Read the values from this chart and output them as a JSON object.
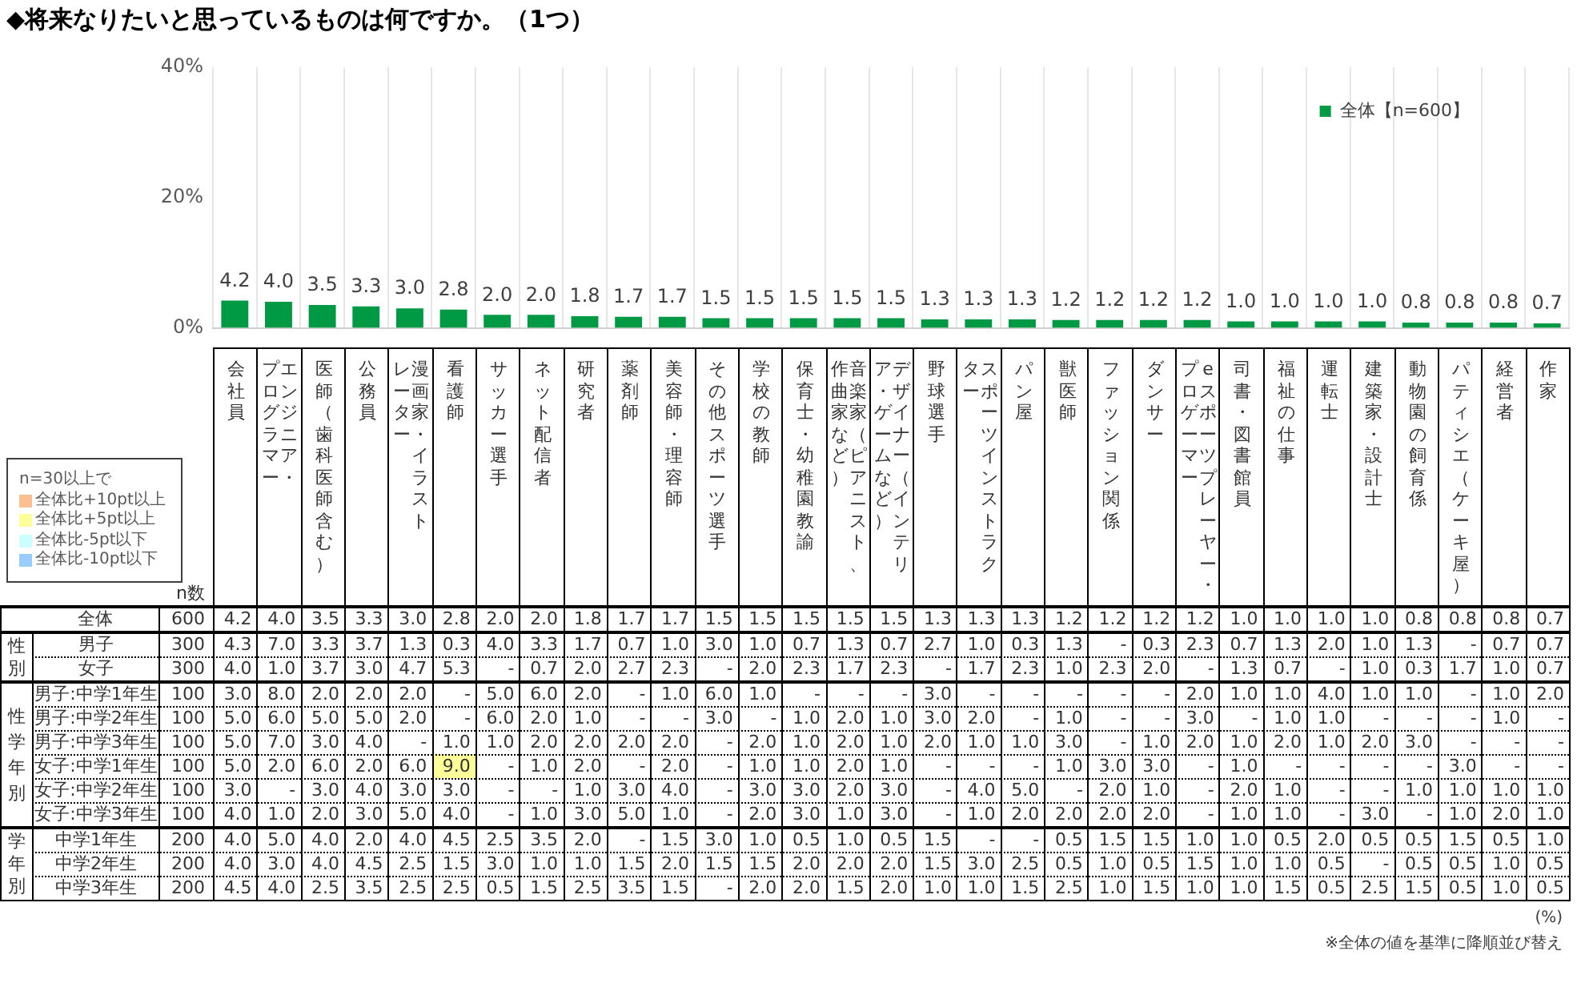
{
  "chart_data": [
    {
      "type": "bar",
      "title": "◆将来なりたいと思っているものは何ですか。（1つ）",
      "categories": [
        null,
        null,
        null,
        null,
        null,
        null,
        null,
        null,
        null,
        null,
        null,
        null,
        null,
        null,
        null,
        null,
        null,
        null,
        null,
        null,
        null,
        null,
        null,
        null,
        null,
        null,
        null,
        null,
        null,
        null,
        null
      ],
      "series": [
        {
          "name": "全体【n=600】",
          "color": "#009944",
          "values": [
            4.2,
            4.0,
            3.5,
            3.3,
            3.0,
            2.8,
            2.0,
            2.0,
            1.8,
            1.7,
            1.7,
            1.5,
            1.5,
            1.5,
            1.5,
            1.5,
            1.3,
            1.3,
            1.3,
            1.2,
            1.2,
            1.2,
            1.2,
            1.0,
            1.0,
            1.0,
            1.0,
            0.8,
            0.8,
            0.8,
            0.7
          ],
          "value_labels": [
            "4.2",
            "4.0",
            "3.5",
            "3.3",
            "3.0",
            "2.8",
            "2.0",
            "2.0",
            "1.8",
            "1.7",
            "1.7",
            "1.5",
            "1.5",
            "1.5",
            "1.5",
            "1.5",
            "1.3",
            "1.3",
            "1.3",
            "1.2",
            "1.2",
            "1.2",
            "1.2",
            "1.0",
            "1.0",
            "1.0",
            "1.0",
            "0.8",
            "0.8",
            "0.8",
            "0.7"
          ]
        }
      ],
      "ylim": [
        0,
        40
      ],
      "yticks": [
        {
          "value": 0,
          "label": "0%"
        },
        {
          "value": 20,
          "label": "20%"
        },
        {
          "value": 40,
          "label": "40%"
        }
      ],
      "grid": "x",
      "legend": "top right",
      "annotations": [
        "(%)",
        "※全体の値を基準に降順並び替え"
      ]
    },
    {
      "type": "other",
      "legend_title": "n=30以上で",
      "categories": [
        "全体比+10pt以上",
        "全体比+5pt以上",
        "全体比-5pt以下",
        "全体比-10pt以下"
      ],
      "colors": [
        "#fac090",
        "#ffff99",
        "#ccffff",
        "#99ccff"
      ]
    },
    {
      "type": "heatmap",
      "categories": [
        "会社員",
        "エンジニア・プログラマー",
        "医師（歯科医師含む）",
        "公務員",
        "漫画家・イラストレーター",
        "看護師",
        "サッカー選手",
        "ネット配信者",
        "研究者",
        "薬剤師",
        "美容師・理容師",
        "その他スポーツ選手",
        "学校の教師",
        "保育士・幼稚園教諭",
        "音楽家（ピアニスト、作曲家など）",
        "デザイナー（インテリア・ゲームなど）",
        "野球選手",
        "スポーツインストラクター",
        "パン屋",
        "獣医師",
        "ファッション関係",
        "ダンサー",
        "eスポーツプレーヤー・プロゲーマー",
        "司書・図書館員",
        "福祉の仕事",
        "運転士",
        "建築家・設計士",
        "動物園の飼育係",
        "パティシエ（ケーキ屋）",
        "経営者",
        "作家"
      ],
      "y_categories": [
        "全体",
        "男子",
        "女子",
        "男子:中学1年生",
        "男子:中学2年生",
        "男子:中学3年生",
        "女子:中学1年生",
        "女子:中学2年生",
        "女子:中学3年生",
        "中学1年生",
        "中学2年生",
        "中学3年生"
      ],
      "y2_categories": [
        "600",
        "300",
        "300",
        "100",
        "100",
        "100",
        "100",
        "100",
        "100",
        "200",
        "200",
        "200"
      ],
      "y2label": "n数",
      "annotations": [
        "性別",
        "性学年別",
        "学年別"
      ],
      "cells": [
        [
          4.2,
          4.0,
          3.5,
          3.3,
          3.0,
          2.8,
          2.0,
          2.0,
          1.8,
          1.7,
          1.7,
          1.5,
          1.5,
          1.5,
          1.5,
          1.5,
          1.3,
          1.3,
          1.3,
          1.2,
          1.2,
          1.2,
          1.2,
          1.0,
          1.0,
          1.0,
          1.0,
          0.8,
          0.8,
          0.8,
          0.7
        ],
        [
          4.3,
          7.0,
          3.3,
          3.7,
          1.3,
          0.3,
          4.0,
          3.3,
          1.7,
          0.7,
          1.0,
          3.0,
          1.0,
          0.7,
          1.3,
          0.7,
          2.7,
          1.0,
          0.3,
          1.3,
          null,
          0.3,
          2.3,
          0.7,
          1.3,
          2.0,
          1.0,
          1.3,
          null,
          0.7,
          0.7
        ],
        [
          4.0,
          1.0,
          3.7,
          3.0,
          4.7,
          5.3,
          null,
          0.7,
          2.0,
          2.7,
          2.3,
          null,
          2.0,
          2.3,
          1.7,
          2.3,
          null,
          1.7,
          2.3,
          1.0,
          2.3,
          2.0,
          null,
          1.3,
          0.7,
          null,
          1.0,
          0.3,
          1.7,
          1.0,
          0.7
        ],
        [
          3.0,
          8.0,
          2.0,
          2.0,
          2.0,
          null,
          5.0,
          6.0,
          2.0,
          null,
          1.0,
          6.0,
          1.0,
          null,
          null,
          null,
          3.0,
          null,
          null,
          null,
          null,
          null,
          2.0,
          1.0,
          1.0,
          4.0,
          1.0,
          1.0,
          null,
          1.0,
          2.0
        ],
        [
          5.0,
          6.0,
          5.0,
          5.0,
          2.0,
          null,
          6.0,
          2.0,
          1.0,
          null,
          null,
          3.0,
          null,
          1.0,
          2.0,
          1.0,
          3.0,
          2.0,
          null,
          1.0,
          null,
          null,
          3.0,
          null,
          1.0,
          1.0,
          null,
          null,
          null,
          1.0,
          null
        ],
        [
          5.0,
          7.0,
          3.0,
          4.0,
          null,
          1.0,
          1.0,
          2.0,
          2.0,
          2.0,
          2.0,
          null,
          2.0,
          1.0,
          2.0,
          1.0,
          2.0,
          1.0,
          1.0,
          3.0,
          null,
          1.0,
          2.0,
          1.0,
          2.0,
          1.0,
          2.0,
          3.0,
          null,
          null,
          null
        ],
        [
          5.0,
          2.0,
          6.0,
          2.0,
          6.0,
          9.0,
          null,
          1.0,
          2.0,
          null,
          2.0,
          null,
          1.0,
          1.0,
          2.0,
          1.0,
          null,
          null,
          null,
          1.0,
          3.0,
          3.0,
          null,
          1.0,
          null,
          null,
          null,
          null,
          3.0,
          null,
          null
        ],
        [
          3.0,
          null,
          3.0,
          4.0,
          3.0,
          3.0,
          null,
          null,
          1.0,
          3.0,
          4.0,
          null,
          3.0,
          3.0,
          2.0,
          3.0,
          null,
          4.0,
          5.0,
          null,
          2.0,
          1.0,
          null,
          2.0,
          1.0,
          null,
          null,
          1.0,
          1.0,
          1.0,
          1.0
        ],
        [
          4.0,
          1.0,
          2.0,
          3.0,
          5.0,
          4.0,
          null,
          1.0,
          3.0,
          5.0,
          1.0,
          null,
          2.0,
          3.0,
          1.0,
          3.0,
          null,
          1.0,
          2.0,
          2.0,
          2.0,
          2.0,
          null,
          1.0,
          1.0,
          null,
          3.0,
          null,
          1.0,
          2.0,
          1.0
        ],
        [
          4.0,
          5.0,
          4.0,
          2.0,
          4.0,
          4.5,
          2.5,
          3.5,
          2.0,
          null,
          1.5,
          3.0,
          1.0,
          0.5,
          1.0,
          0.5,
          1.5,
          null,
          null,
          0.5,
          1.5,
          1.5,
          1.0,
          1.0,
          0.5,
          2.0,
          0.5,
          0.5,
          1.5,
          0.5,
          1.0
        ],
        [
          4.0,
          3.0,
          4.0,
          4.5,
          2.5,
          1.5,
          3.0,
          1.0,
          1.0,
          1.5,
          2.0,
          1.5,
          1.5,
          2.0,
          2.0,
          2.0,
          1.5,
          3.0,
          2.5,
          0.5,
          1.0,
          0.5,
          1.5,
          1.0,
          1.0,
          0.5,
          null,
          0.5,
          0.5,
          1.0,
          0.5
        ],
        [
          4.5,
          4.0,
          2.5,
          3.5,
          2.5,
          2.5,
          0.5,
          1.5,
          2.5,
          3.5,
          1.5,
          null,
          2.0,
          2.0,
          1.5,
          2.0,
          1.0,
          1.0,
          1.5,
          2.5,
          1.0,
          1.5,
          1.0,
          1.0,
          1.5,
          0.5,
          2.5,
          1.5,
          0.5,
          1.0,
          0.5
        ]
      ],
      "cell_labels": [
        [
          "4.2",
          "4.0",
          "3.5",
          "3.3",
          "3.0",
          "2.8",
          "2.0",
          "2.0",
          "1.8",
          "1.7",
          "1.7",
          "1.5",
          "1.5",
          "1.5",
          "1.5",
          "1.5",
          "1.3",
          "1.3",
          "1.3",
          "1.2",
          "1.2",
          "1.2",
          "1.2",
          "1.0",
          "1.0",
          "1.0",
          "1.0",
          "0.8",
          "0.8",
          "0.8",
          "0.7"
        ],
        [
          "4.3",
          "7.0",
          "3.3",
          "3.7",
          "1.3",
          "0.3",
          "4.0",
          "3.3",
          "1.7",
          "0.7",
          "1.0",
          "3.0",
          "1.0",
          "0.7",
          "1.3",
          "0.7",
          "2.7",
          "1.0",
          "0.3",
          "1.3",
          "-",
          "0.3",
          "2.3",
          "0.7",
          "1.3",
          "2.0",
          "1.0",
          "1.3",
          "-",
          "0.7",
          "0.7"
        ],
        [
          "4.0",
          "1.0",
          "3.7",
          "3.0",
          "4.7",
          "5.3",
          "-",
          "0.7",
          "2.0",
          "2.7",
          "2.3",
          "-",
          "2.0",
          "2.3",
          "1.7",
          "2.3",
          "-",
          "1.7",
          "2.3",
          "1.0",
          "2.3",
          "2.0",
          "-",
          "1.3",
          "0.7",
          "-",
          "1.0",
          "0.3",
          "1.7",
          "1.0",
          "0.7"
        ],
        [
          "3.0",
          "8.0",
          "2.0",
          "2.0",
          "2.0",
          "-",
          "5.0",
          "6.0",
          "2.0",
          "-",
          "1.0",
          "6.0",
          "1.0",
          "-",
          "-",
          "-",
          "3.0",
          "-",
          "-",
          "-",
          "-",
          "-",
          "2.0",
          "1.0",
          "1.0",
          "4.0",
          "1.0",
          "1.0",
          "-",
          "1.0",
          "2.0"
        ],
        [
          "5.0",
          "6.0",
          "5.0",
          "5.0",
          "2.0",
          "-",
          "6.0",
          "2.0",
          "1.0",
          "-",
          "-",
          "3.0",
          "-",
          "1.0",
          "2.0",
          "1.0",
          "3.0",
          "2.0",
          "-",
          "1.0",
          "-",
          "-",
          "3.0",
          "-",
          "1.0",
          "1.0",
          "-",
          "-",
          "-",
          "1.0",
          "-"
        ],
        [
          "5.0",
          "7.0",
          "3.0",
          "4.0",
          "-",
          "1.0",
          "1.0",
          "2.0",
          "2.0",
          "2.0",
          "2.0",
          "-",
          "2.0",
          "1.0",
          "2.0",
          "1.0",
          "2.0",
          "1.0",
          "1.0",
          "3.0",
          "-",
          "1.0",
          "2.0",
          "1.0",
          "2.0",
          "1.0",
          "2.0",
          "3.0",
          "-",
          "-",
          "-"
        ],
        [
          "5.0",
          "2.0",
          "6.0",
          "2.0",
          "6.0",
          "9.0",
          "-",
          "1.0",
          "2.0",
          "-",
          "2.0",
          "-",
          "1.0",
          "1.0",
          "2.0",
          "1.0",
          "-",
          "-",
          "-",
          "1.0",
          "3.0",
          "3.0",
          "-",
          "1.0",
          "-",
          "-",
          "-",
          "-",
          "3.0",
          "-",
          "-"
        ],
        [
          "3.0",
          "-",
          "3.0",
          "4.0",
          "3.0",
          "3.0",
          "-",
          "-",
          "1.0",
          "3.0",
          "4.0",
          "-",
          "3.0",
          "3.0",
          "2.0",
          "3.0",
          "-",
          "4.0",
          "5.0",
          "-",
          "2.0",
          "1.0",
          "-",
          "2.0",
          "1.0",
          "-",
          "-",
          "1.0",
          "1.0",
          "1.0",
          "1.0"
        ],
        [
          "4.0",
          "1.0",
          "2.0",
          "3.0",
          "5.0",
          "4.0",
          "-",
          "1.0",
          "3.0",
          "5.0",
          "1.0",
          "-",
          "2.0",
          "3.0",
          "1.0",
          "3.0",
          "-",
          "1.0",
          "2.0",
          "2.0",
          "2.0",
          "2.0",
          "-",
          "1.0",
          "1.0",
          "-",
          "3.0",
          "-",
          "1.0",
          "2.0",
          "1.0"
        ],
        [
          "4.0",
          "5.0",
          "4.0",
          "2.0",
          "4.0",
          "4.5",
          "2.5",
          "3.5",
          "2.0",
          "-",
          "1.5",
          "3.0",
          "1.0",
          "0.5",
          "1.0",
          "0.5",
          "1.5",
          "-",
          "-",
          "0.5",
          "1.5",
          "1.5",
          "1.0",
          "1.0",
          "0.5",
          "2.0",
          "0.5",
          "0.5",
          "1.5",
          "0.5",
          "1.0"
        ],
        [
          "4.0",
          "3.0",
          "4.0",
          "4.5",
          "2.5",
          "1.5",
          "3.0",
          "1.0",
          "1.0",
          "1.5",
          "2.0",
          "1.5",
          "1.5",
          "2.0",
          "2.0",
          "2.0",
          "1.5",
          "3.0",
          "2.5",
          "0.5",
          "1.0",
          "0.5",
          "1.5",
          "1.0",
          "1.0",
          "0.5",
          "-",
          "0.5",
          "0.5",
          "1.0",
          "0.5"
        ],
        [
          "4.5",
          "4.0",
          "2.5",
          "3.5",
          "2.5",
          "2.5",
          "0.5",
          "1.5",
          "2.5",
          "3.5",
          "1.5",
          "-",
          "2.0",
          "2.0",
          "1.5",
          "2.0",
          "1.0",
          "1.0",
          "1.5",
          "2.5",
          "1.0",
          "1.5",
          "1.0",
          "1.0",
          "1.5",
          "0.5",
          "2.5",
          "1.5",
          "0.5",
          "1.0",
          "0.5"
        ]
      ]
    }
  ]
}
